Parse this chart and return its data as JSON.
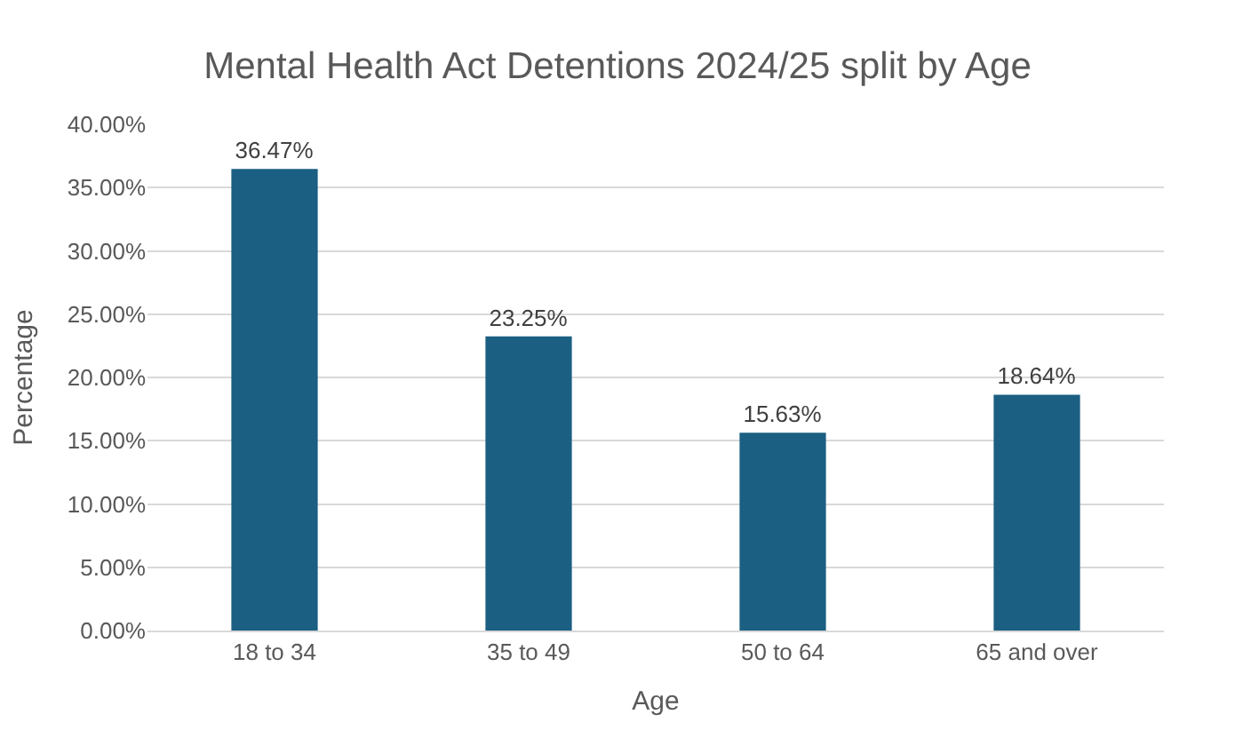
{
  "chart_data": {
    "type": "bar",
    "title": "Mental Health Act Detentions 2024/25 split by Age",
    "xlabel": "Age",
    "ylabel": "Percentage",
    "categories": [
      "18 to 34",
      "35 to 49",
      "50 to 64",
      "65 and over"
    ],
    "values": [
      36.47,
      23.25,
      15.63,
      18.64
    ],
    "value_labels": [
      "36.47%",
      "23.25%",
      "15.63%",
      "18.64%"
    ],
    "color": "#1b5f82",
    "ylim": [
      0,
      40
    ],
    "yticks": [
      {
        "value": 0,
        "label": "0.00%"
      },
      {
        "value": 5,
        "label": "5.00%"
      },
      {
        "value": 10,
        "label": "10.00%"
      },
      {
        "value": 15,
        "label": "15.00%"
      },
      {
        "value": 20,
        "label": "20.00%"
      },
      {
        "value": 25,
        "label": "25.00%"
      },
      {
        "value": 30,
        "label": "30.00%"
      },
      {
        "value": 35,
        "label": "35.00%"
      },
      {
        "value": 40,
        "label": "40.00%"
      }
    ],
    "grid": "y"
  }
}
